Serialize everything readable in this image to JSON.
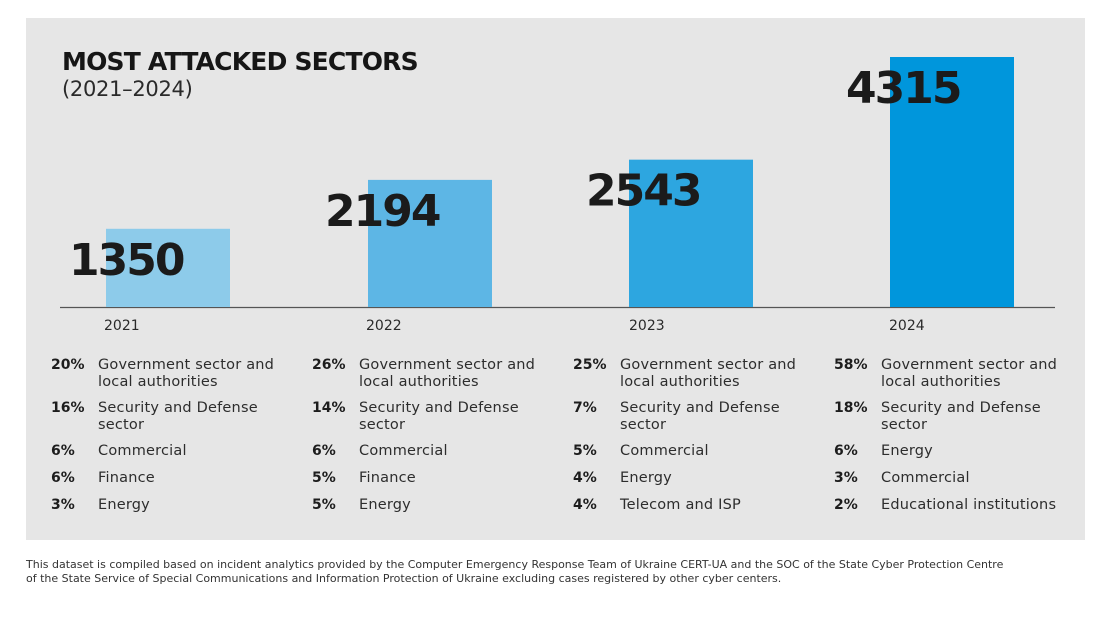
{
  "header": {
    "title": "MOST ATTACKED SECTORS",
    "subtitle": "(2021–2024)"
  },
  "chart_data": {
    "type": "bar",
    "title": "MOST ATTACKED SECTORS",
    "subtitle": "(2021–2024)",
    "categories": [
      "2021",
      "2022",
      "2023",
      "2024"
    ],
    "values": [
      1350,
      2194,
      2543,
      4315
    ],
    "colors": [
      "#8dcbea",
      "#5db6e5",
      "#2da6e0",
      "#0096dc"
    ],
    "ylim": [
      0,
      4500
    ],
    "grid": false,
    "data_labels": [
      "1350",
      "2194",
      "2543",
      "4315"
    ]
  },
  "sectors": [
    {
      "year": "2021",
      "items": [
        {
          "pct": "20%",
          "label": "Government sector and local authorities"
        },
        {
          "pct": "16%",
          "label": "Security and Defense sector"
        },
        {
          "pct": "6%",
          "label": "Commercial"
        },
        {
          "pct": "6%",
          "label": "Finance"
        },
        {
          "pct": "3%",
          "label": "Energy"
        }
      ]
    },
    {
      "year": "2022",
      "items": [
        {
          "pct": "26%",
          "label": "Government sector and local authorities"
        },
        {
          "pct": "14%",
          "label": "Security and Defense sector"
        },
        {
          "pct": "6%",
          "label": "Commercial"
        },
        {
          "pct": "5%",
          "label": "Finance"
        },
        {
          "pct": "5%",
          "label": "Energy"
        }
      ]
    },
    {
      "year": "2023",
      "items": [
        {
          "pct": "25%",
          "label": "Government sector and local authorities"
        },
        {
          "pct": "7%",
          "label": "Security and Defense sector"
        },
        {
          "pct": "5%",
          "label": "Commercial"
        },
        {
          "pct": "4%",
          "label": "Energy"
        },
        {
          "pct": "4%",
          "label": "Telecom and ISP"
        }
      ]
    },
    {
      "year": "2024",
      "items": [
        {
          "pct": "58%",
          "label": "Government sector and local authorities"
        },
        {
          "pct": "18%",
          "label": "Security and Defense sector"
        },
        {
          "pct": "6%",
          "label": "Energy"
        },
        {
          "pct": "3%",
          "label": "Commercial"
        },
        {
          "pct": "2%",
          "label": "Educational institutions"
        }
      ]
    }
  ],
  "footnote": "This dataset is compiled based on incident analytics provided by the Computer Emergency Response Team of Ukraine CERT-UA and the SOC of the State Cyber Protection Centre of the State Service of Special Communications and Information Protection of Ukraine excluding cases registered by other cyber centers."
}
